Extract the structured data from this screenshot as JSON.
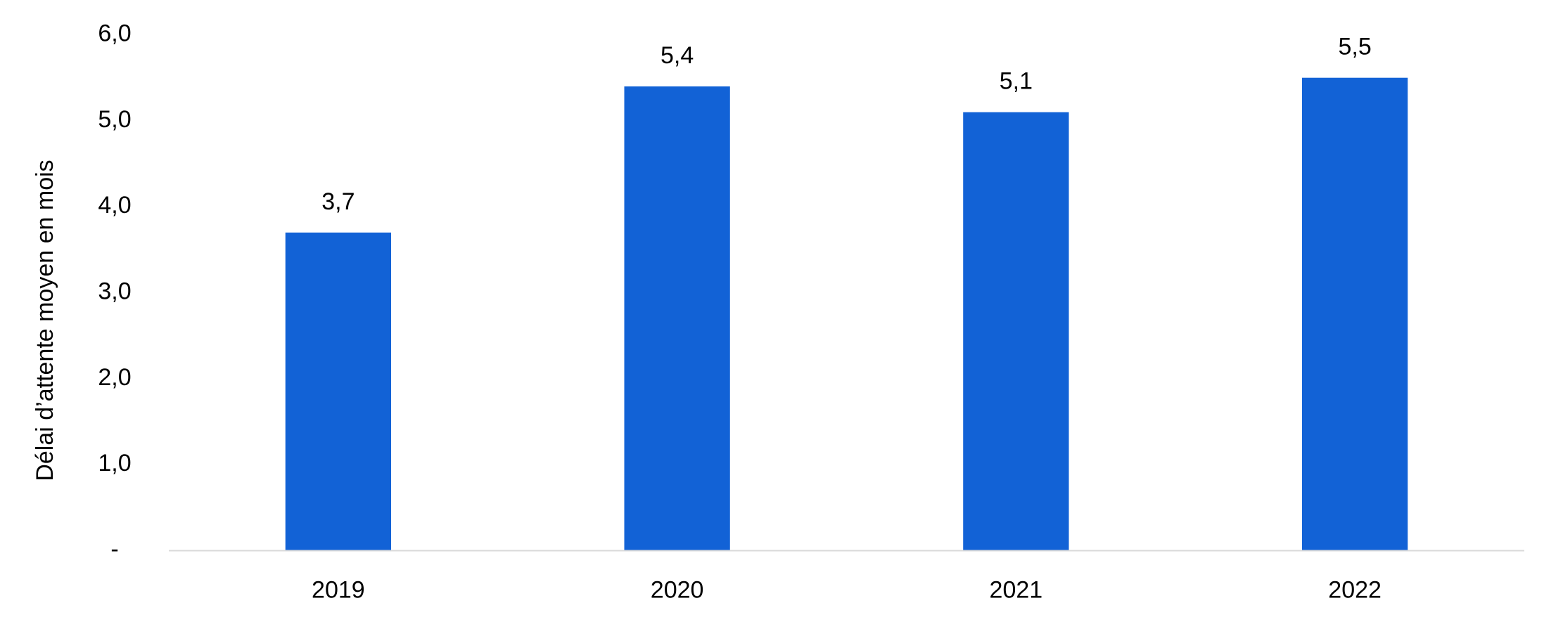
{
  "chart_data": {
    "type": "bar",
    "y_label": "Délai d’attente moyen en mois",
    "categories": [
      "2019",
      "2020",
      "2021",
      "2022"
    ],
    "values": [
      3.7,
      5.4,
      5.1,
      5.5
    ],
    "value_labels": [
      "3,7",
      "5,4",
      "5,1",
      "5,5"
    ],
    "color": "#1262d6",
    "ylim": [
      0,
      6
    ],
    "yticks": [
      {
        "value": 0,
        "label": "-"
      },
      {
        "value": 1,
        "label": "1,0"
      },
      {
        "value": 2,
        "label": "2,0"
      },
      {
        "value": 3,
        "label": "3,0"
      },
      {
        "value": 4,
        "label": "4,0"
      },
      {
        "value": 5,
        "label": "5,0"
      },
      {
        "value": 6,
        "label": "6,0"
      }
    ],
    "grid": false
  }
}
